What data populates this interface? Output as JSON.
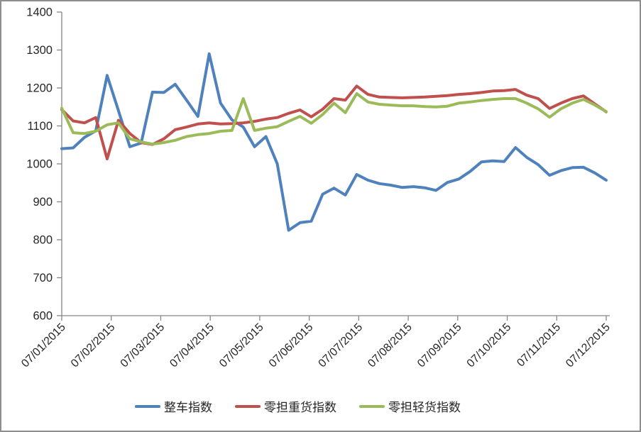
{
  "chart_data": {
    "type": "line",
    "title": "",
    "xlabel": "",
    "ylabel": "",
    "ylim": [
      600,
      1400
    ],
    "y_ticks": [
      600,
      700,
      800,
      900,
      1000,
      1100,
      1200,
      1300,
      1400
    ],
    "x_tick_labels": [
      "07/01/2015",
      "07/02/2015",
      "07/03/2015",
      "07/04/2015",
      "07/05/2015",
      "07/06/2015",
      "07/07/2015",
      "07/08/2015",
      "07/09/2015",
      "07/10/2015",
      "07/11/2015",
      "07/12/2015"
    ],
    "grid": false,
    "legend_position": "bottom",
    "axis_color": "#868686",
    "label_color": "#262626",
    "series": [
      {
        "name": "整车指数",
        "color": "#4F81BD",
        "values": [
          1040,
          1042,
          1070,
          1087,
          1233,
          1140,
          1045,
          1055,
          1189,
          1188,
          1210,
          1168,
          1125,
          1290,
          1160,
          1116,
          1097,
          1045,
          1072,
          1000,
          825,
          845,
          849,
          920,
          936,
          918,
          972,
          957,
          948,
          944,
          938,
          940,
          937,
          930,
          951,
          960,
          980,
          1005,
          1008,
          1006,
          1043,
          1017,
          998,
          970,
          982,
          990,
          991,
          976,
          957
        ]
      },
      {
        "name": "零担重货指数",
        "color": "#C0504D",
        "values": [
          1143,
          1113,
          1108,
          1122,
          1013,
          1115,
          1080,
          1056,
          1051,
          1066,
          1090,
          1097,
          1105,
          1108,
          1105,
          1106,
          1108,
          1112,
          1118,
          1122,
          1133,
          1142,
          1124,
          1144,
          1172,
          1168,
          1205,
          1183,
          1176,
          1175,
          1174,
          1175,
          1176,
          1178,
          1180,
          1183,
          1185,
          1188,
          1192,
          1193,
          1196,
          1181,
          1172,
          1146,
          1160,
          1172,
          1179,
          1158,
          1137
        ]
      },
      {
        "name": "零担轻货指数",
        "color": "#9BBB59",
        "values": [
          1147,
          1082,
          1080,
          1086,
          1103,
          1108,
          1066,
          1058,
          1052,
          1056,
          1062,
          1072,
          1077,
          1080,
          1086,
          1088,
          1172,
          1088,
          1094,
          1098,
          1112,
          1125,
          1107,
          1130,
          1160,
          1135,
          1185,
          1163,
          1157,
          1155,
          1153,
          1153,
          1151,
          1150,
          1152,
          1160,
          1163,
          1167,
          1170,
          1172,
          1172,
          1160,
          1145,
          1123,
          1145,
          1160,
          1170,
          1155,
          1138
        ]
      }
    ]
  }
}
